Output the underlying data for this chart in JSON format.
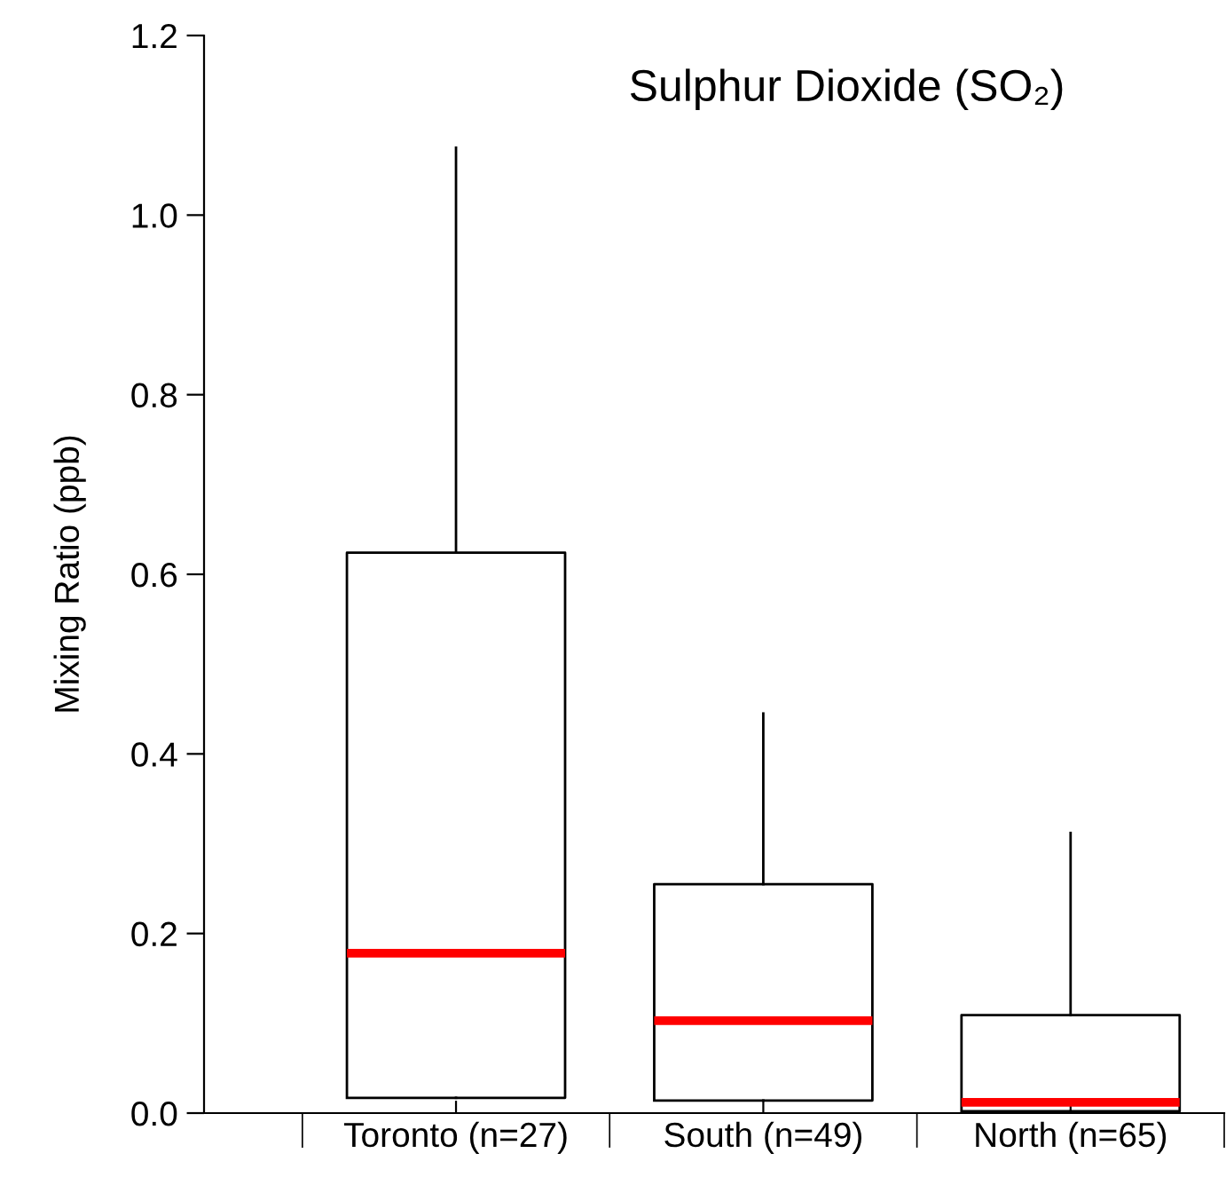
{
  "chart_data": {
    "type": "box",
    "title": "Sulphur Dioxide (SO₂)",
    "ylabel": "Mixing Ratio (ppb)",
    "categories": [
      "Toronto (n=27)",
      "South (n=49)",
      "North (n=65)"
    ],
    "boxes": [
      {
        "low": 0.017,
        "q1": 0.017,
        "median": 0.178,
        "q3": 0.624,
        "high": 1.075
      },
      {
        "low": 0.014,
        "q1": 0.014,
        "median": 0.103,
        "q3": 0.255,
        "high": 0.445
      },
      {
        "low": 0.002,
        "q1": 0.002,
        "median": 0.012,
        "q3": 0.109,
        "high": 0.312
      }
    ],
    "ylim": [
      0,
      1.2
    ],
    "yticks": [
      {
        "value": 0,
        "label": "0.0"
      },
      0.2,
      0.4,
      0.6,
      0.8,
      {
        "value": 1,
        "label": "1.0"
      },
      1.2
    ],
    "grid": false
  }
}
